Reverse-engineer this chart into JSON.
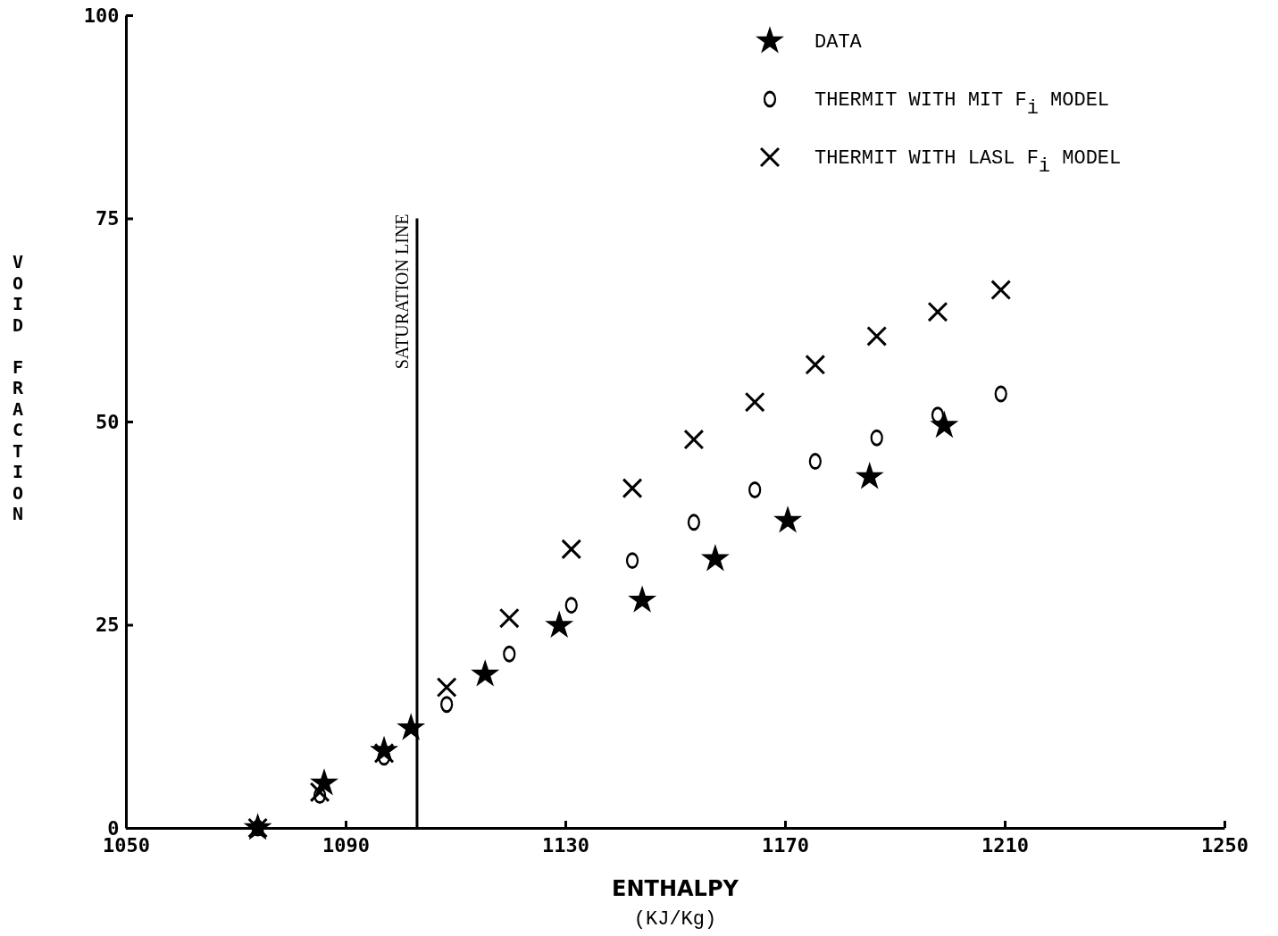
{
  "chart_data": {
    "type": "scatter",
    "xlabel": "ENTHALPY\n(KJ/Kg)",
    "ylabel": "VOID FRACTION",
    "xlim": [
      1050,
      1250
    ],
    "xticks": [
      1050,
      1090,
      1130,
      1170,
      1210,
      1250
    ],
    "ylim": [
      0,
      100
    ],
    "yticks": [
      0,
      25,
      50,
      75,
      100
    ],
    "grid": false,
    "legend": "top right",
    "ref_lines": [
      {
        "axis": "x",
        "value": 1103,
        "label": "SATURATION LINE",
        "color": "#000000",
        "line_style": "solid"
      }
    ],
    "series": [
      {
        "name": "DATA",
        "color": "#000000",
        "marker": "star",
        "x": [
          1074,
          1086.1,
          1097,
          1101.9,
          1115.4,
          1128.9,
          1144,
          1157.3,
          1170.5,
          1185.4,
          1199
        ],
        "values": [
          0,
          5.5,
          9.5,
          12.3,
          18.9,
          24.9,
          28,
          33.1,
          37.8,
          43.2,
          49.5
        ]
      },
      {
        "name": "THERMIT WITH MIT F$_{i}$ MODEL",
        "color": "#000000",
        "marker": "circle",
        "x": [
          1074,
          1085.3,
          1097,
          1108.4,
          1119.8,
          1131.1,
          1142.2,
          1153.4,
          1164.5,
          1175.5,
          1186.7,
          1197.8,
          1209.3
        ],
        "values": [
          0,
          4,
          8.7,
          15.2,
          21.4,
          27.4,
          32.9,
          37.6,
          41.6,
          45.1,
          48,
          50.8,
          53.4
        ]
      },
      {
        "name": "THERMIT WITH LASL F$_{i}$ MODEL",
        "color": "#000000",
        "marker": "cross",
        "x": [
          1074,
          1085.3,
          1097,
          1108.4,
          1119.8,
          1131.1,
          1142.2,
          1153.4,
          1164.5,
          1175.5,
          1186.7,
          1197.8,
          1209.3
        ],
        "values": [
          0,
          4.4,
          9.2,
          17.3,
          25.8,
          34.3,
          41.8,
          47.8,
          52.4,
          57,
          60.5,
          63.5,
          66.2
        ]
      }
    ]
  }
}
